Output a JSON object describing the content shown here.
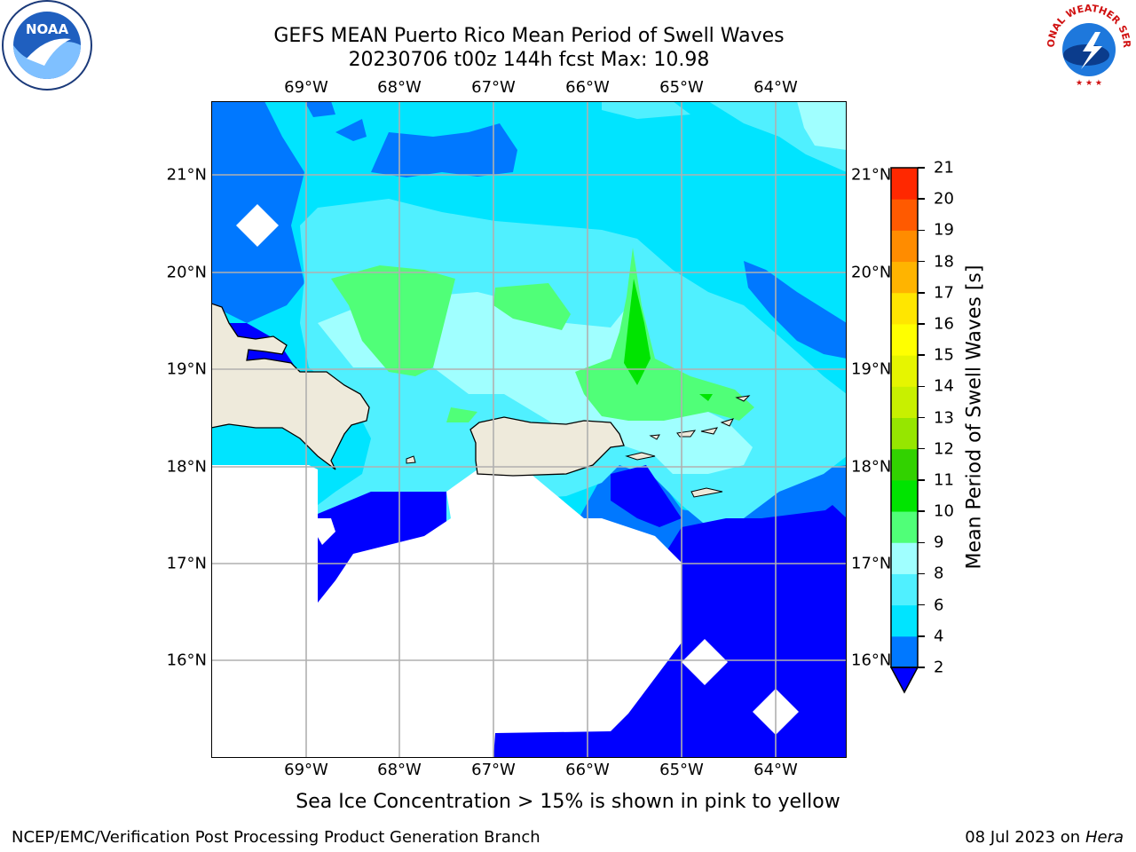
{
  "header": {
    "title_line1": "GEFS MEAN Puerto Rico Mean Period of Swell Waves",
    "title_line2": "20230706 t00z 144h fcst   Max: 10.98"
  },
  "map": {
    "lon_ticks": [
      "69°W",
      "68°W",
      "67°W",
      "66°W",
      "65°W",
      "64°W"
    ],
    "lat_ticks": [
      "21°N",
      "20°N",
      "19°N",
      "18°N",
      "17°N",
      "16°N"
    ],
    "extent": {
      "lon": [
        -70.0,
        -63.25
      ],
      "lat": [
        15.0,
        21.75
      ]
    }
  },
  "colorbar": {
    "label": "Mean Period of Swell Waves [s]",
    "ticks": [
      "2",
      "4",
      "6",
      "8",
      "9",
      "10",
      "11",
      "12",
      "13",
      "14",
      "15",
      "16",
      "17",
      "18",
      "19",
      "20",
      "21"
    ],
    "colors": [
      "#0078ff",
      "#00e4ff",
      "#50f0ff",
      "#a0ffff",
      "#50ff78",
      "#00e400",
      "#32d200",
      "#96e600",
      "#c8f000",
      "#e6f500",
      "#ffff00",
      "#ffe600",
      "#ffb400",
      "#ff8c00",
      "#ff5a00",
      "#ff2800"
    ],
    "under_color": "#0000ff"
  },
  "footer": {
    "note": "Sea Ice Concentration > 15% is shown in pink to yellow",
    "left": "NCEP/EMC/Verification Post Processing Product Generation Branch",
    "right_date": "08 Jul 2023 on ",
    "right_host": "Hera"
  },
  "logos": {
    "left": "NOAA",
    "right": "NATIONAL WEATHER SERVICE"
  },
  "colors": {
    "land": "#eeeadb",
    "grid": "#b0b0b0",
    "ocean_base": "#00e4ff"
  }
}
